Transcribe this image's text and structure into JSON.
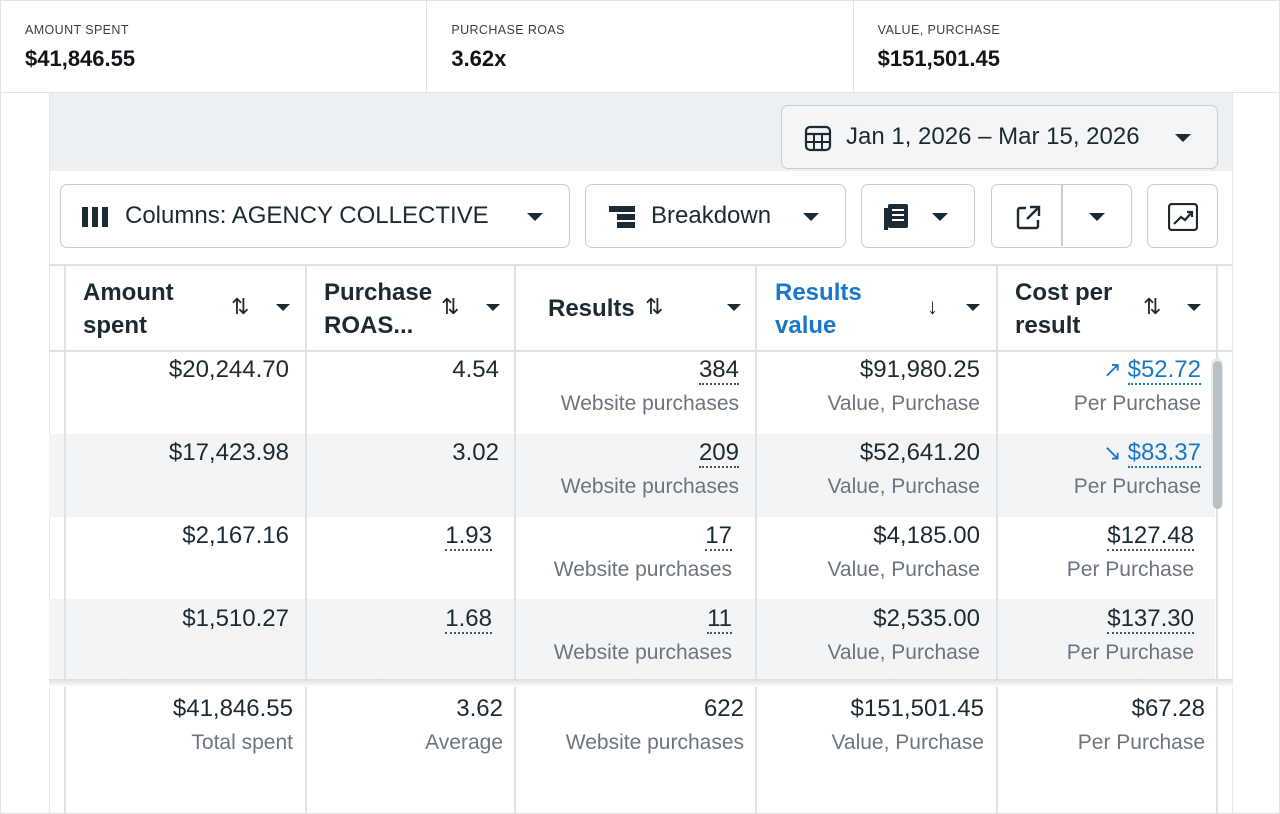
{
  "metrics": [
    {
      "label": "AMOUNT SPENT",
      "value": "$41,846.55"
    },
    {
      "label": "PURCHASE ROAS",
      "value": "3.62x"
    },
    {
      "label": "VALUE, PURCHASE",
      "value": "$151,501.45"
    }
  ],
  "toolbar": {
    "date_range": "Jan 1, 2026 – Mar 15, 2026",
    "columns_label": "Columns: AGENCY COLLECTIVE",
    "breakdown_label": "Breakdown"
  },
  "table": {
    "headers": [
      {
        "line1": "Amount",
        "line2": "spent"
      },
      {
        "line1": "Purchase",
        "line2": "ROAS..."
      },
      {
        "line1": "Results",
        "line2": ""
      },
      {
        "line1": "Results",
        "line2": "value"
      },
      {
        "line1": "Cost per",
        "line2": "result"
      }
    ],
    "rows": [
      {
        "spent": "$20,244.70",
        "roas": "4.54",
        "results": "384",
        "results_sub": "Website purchases",
        "value": "$91,980.25",
        "value_sub": "Value, Purchase",
        "cpr": "$52.72",
        "cpr_sub": "Per Purchase",
        "trend": "up"
      },
      {
        "spent": "$17,423.98",
        "roas": "3.02",
        "results": "209",
        "results_sub": "Website purchases",
        "value": "$52,641.20",
        "value_sub": "Value, Purchase",
        "cpr": "$83.37",
        "cpr_sub": "Per Purchase",
        "trend": "down"
      },
      {
        "spent": "$2,167.16",
        "roas": "1.93",
        "results": "17",
        "results_sub": "Website purchases",
        "value": "$4,185.00",
        "value_sub": "Value, Purchase",
        "cpr": "$127.48",
        "cpr_sub": "Per Purchase"
      },
      {
        "spent": "$1,510.27",
        "roas": "1.68",
        "results": "11",
        "results_sub": "Website purchases",
        "value": "$2,535.00",
        "value_sub": "Value, Purchase",
        "cpr": "$137.30",
        "cpr_sub": "Per Purchase"
      }
    ],
    "totals": {
      "spent": "$41,846.55",
      "spent_sub": "Total spent",
      "roas": "3.62",
      "roas_sub": "Average",
      "results": "622",
      "results_sub": "Website purchases",
      "value": "$151,501.45",
      "value_sub": "Value, Purchase",
      "cpr": "$67.28",
      "cpr_sub": "Per Purchase"
    }
  },
  "colors": {
    "link_blue": "#1877c9",
    "row_alt": "#f2f4f6",
    "border": "#dfe3e6"
  },
  "icons": [
    "calendar-icon",
    "columns-icon",
    "breakdown-icon",
    "reports-icon",
    "export-icon",
    "chart-icon",
    "trend-up-icon",
    "trend-down-icon",
    "sort-icon",
    "sort-down-icon"
  ]
}
